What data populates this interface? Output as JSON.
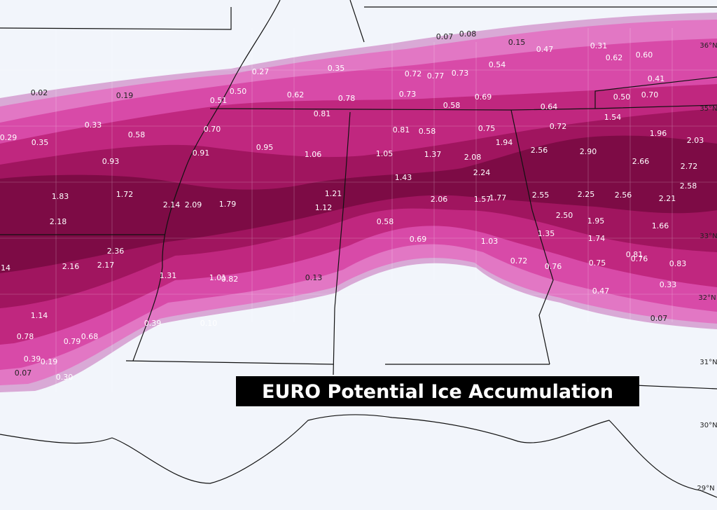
{
  "map": {
    "title": "EURO Potential Ice Accumulation",
    "latitude_labels": [
      "36°N",
      "35°N",
      "33°N",
      "32°N",
      "31°N",
      "30°N",
      "29°N"
    ],
    "ice_labels": [
      "0.07",
      "0.08",
      "0.15",
      "0.47",
      "0.31",
      "0.62",
      "0.60",
      "0.41",
      "0.50",
      "0.70",
      "0.27",
      "0.35",
      "0.72",
      "0.77",
      "0.73",
      "0.54",
      "0.02",
      "0.19",
      "0.50",
      "0.62",
      "0.78",
      "0.73",
      "0.58",
      "0.69",
      "0.64",
      "0.51",
      "0.81",
      "0.81",
      "0.58",
      "0.75",
      "0.72",
      "1.54",
      "1.96",
      "2.03",
      "0.29",
      "0.33",
      "0.58",
      "0.70",
      "0.35",
      "0.93",
      "0.91",
      "0.95",
      "1.06",
      "1.05",
      "1.37",
      "2.08",
      "1.94",
      "2.56",
      "2.90",
      "2.66",
      "2.72",
      "2.24",
      "1.43",
      "2.58",
      "1.83",
      "1.72",
      "2.14",
      "2.09",
      "1.79",
      "1.21",
      "1.12",
      "2.06",
      "1.57",
      "1.77",
      "2.55",
      "2.25",
      "2.56",
      "2.21",
      "2.18",
      "0.58",
      "2.50",
      "1.95",
      "1.66",
      "0.69",
      "1.03",
      "1.35",
      "1.74",
      "2.36",
      "2.16",
      "2.17",
      "0.72",
      "0.76",
      "0.75",
      "0.81",
      "0.76",
      "0.83",
      "1.31",
      "1.01",
      "0.82",
      "0.13",
      "0.47",
      "0.33",
      "1.14",
      "0.39",
      "0.10",
      "0.07",
      "0.78",
      "0.79",
      "0.68",
      "0.39",
      "0.19",
      "0.07",
      "0.30",
      "14"
    ]
  }
}
